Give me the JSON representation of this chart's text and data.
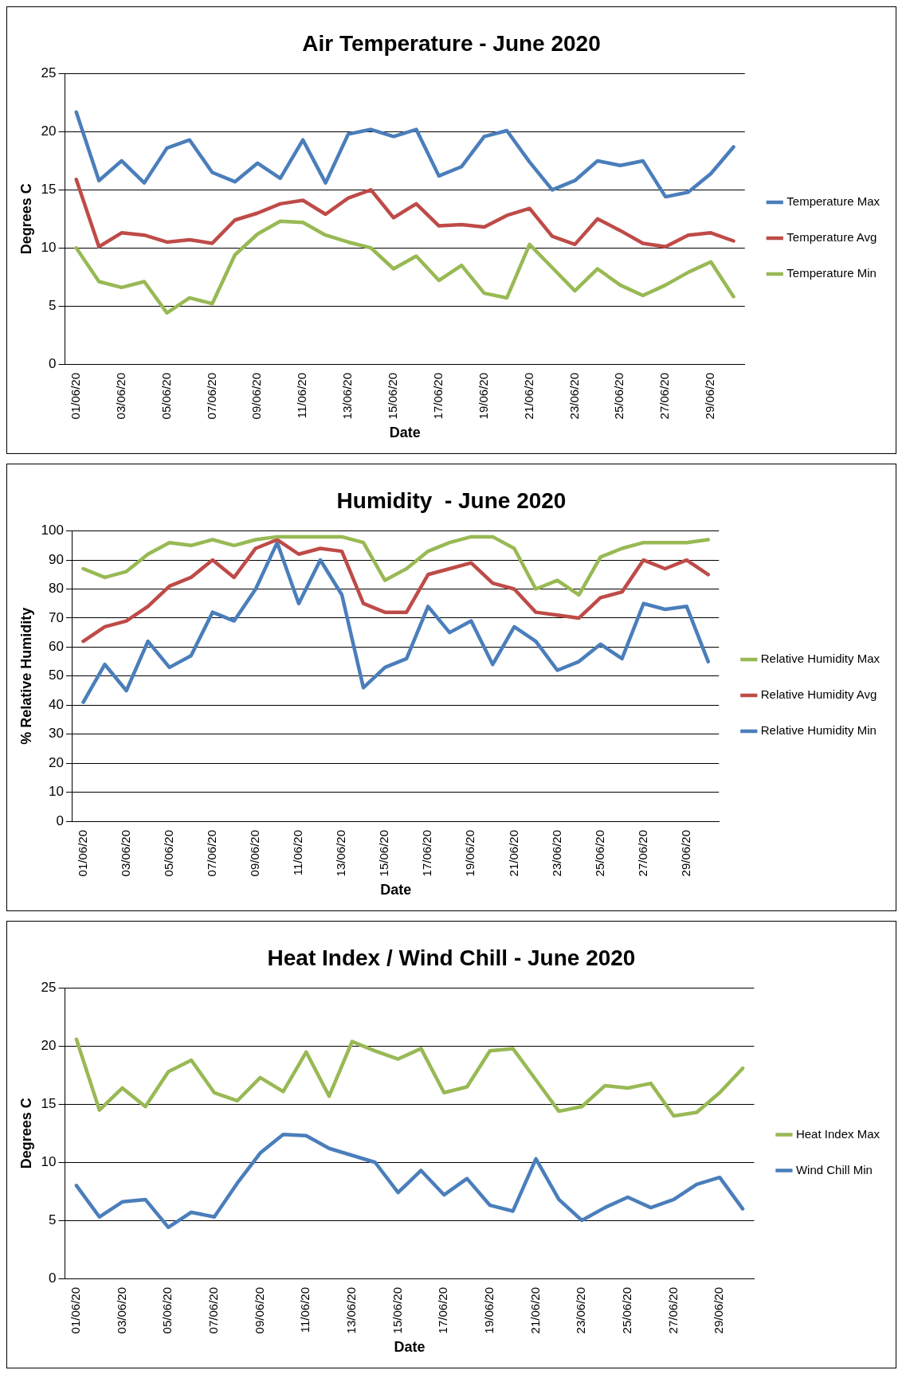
{
  "chart_data": [
    {
      "type": "line",
      "title": "Air Temperature - June 2020",
      "xlabel": "Date",
      "ylabel": "Degrees C",
      "categories": [
        "01/06/20",
        null,
        "03/06/20",
        null,
        "05/06/20",
        null,
        "07/06/20",
        null,
        "09/06/20",
        null,
        "11/06/20",
        null,
        "13/06/20",
        null,
        "15/06/20",
        null,
        "17/06/20",
        null,
        "19/06/20",
        null,
        "21/06/20",
        null,
        "23/06/20",
        null,
        "25/06/20",
        null,
        "27/06/20",
        null,
        "29/06/20",
        null
      ],
      "ylim": [
        0,
        25
      ],
      "yticks": [
        0,
        5,
        10,
        15,
        20,
        25
      ],
      "grid": "y",
      "legend": "right",
      "marker": "none",
      "line_style": "solid",
      "series": [
        {
          "name": "Temperature Max",
          "color": "#4a7ebb",
          "values": [
            21.7,
            15.8,
            17.5,
            15.6,
            18.6,
            19.3,
            16.5,
            15.7,
            17.3,
            16.0,
            19.3,
            15.6,
            19.8,
            20.2,
            19.6,
            20.2,
            16.2,
            17.0,
            19.6,
            20.1,
            17.4,
            15.0,
            15.8,
            17.5,
            17.1,
            17.5,
            14.4,
            14.8,
            16.4,
            18.7
          ]
        },
        {
          "name": "Temperature Avg",
          "color": "#be4b48",
          "values": [
            15.9,
            10.1,
            11.3,
            11.1,
            10.5,
            10.7,
            10.4,
            12.4,
            13.0,
            13.8,
            14.1,
            12.9,
            14.3,
            15.0,
            12.6,
            13.8,
            11.9,
            12.0,
            11.8,
            12.8,
            13.4,
            11.0,
            10.3,
            12.5,
            11.5,
            10.4,
            10.1,
            11.1,
            11.3,
            10.6
          ]
        },
        {
          "name": "Temperature Min",
          "color": "#98b954",
          "values": [
            10.0,
            7.1,
            6.6,
            7.1,
            4.4,
            5.7,
            5.2,
            9.4,
            11.2,
            12.3,
            12.2,
            11.1,
            10.5,
            10.0,
            8.2,
            9.3,
            7.2,
            8.5,
            6.1,
            5.7,
            10.3,
            8.3,
            6.3,
            8.2,
            6.8,
            5.9,
            6.8,
            7.9,
            8.8,
            5.8
          ]
        }
      ]
    },
    {
      "type": "line",
      "title": "Humidity  - June 2020",
      "xlabel": "Date",
      "ylabel": "% Relative Humidity",
      "categories": [
        "01/06/20",
        null,
        "03/06/20",
        null,
        "05/06/20",
        null,
        "07/06/20",
        null,
        "09/06/20",
        null,
        "11/06/20",
        null,
        "13/06/20",
        null,
        "15/06/20",
        null,
        "17/06/20",
        null,
        "19/06/20",
        null,
        "21/06/20",
        null,
        "23/06/20",
        null,
        "25/06/20",
        null,
        "27/06/20",
        null,
        "29/06/20",
        null
      ],
      "ylim": [
        0,
        100
      ],
      "yticks": [
        0,
        10,
        20,
        30,
        40,
        50,
        60,
        70,
        80,
        90,
        100
      ],
      "grid": "y",
      "legend": "right",
      "marker": "none",
      "line_style": "solid",
      "series": [
        {
          "name": "Relative Humidity Max",
          "color": "#98b954",
          "values": [
            87,
            84,
            86,
            92,
            96,
            95,
            97,
            95,
            97,
            98,
            98,
            98,
            98,
            96,
            83,
            87,
            93,
            96,
            98,
            98,
            94,
            80,
            83,
            78,
            91,
            94,
            96,
            96,
            96,
            97
          ]
        },
        {
          "name": "Relative Humidity Avg",
          "color": "#be4b48",
          "values": [
            62,
            67,
            69,
            74,
            81,
            84,
            90,
            84,
            94,
            97,
            92,
            94,
            93,
            75,
            72,
            72,
            85,
            87,
            89,
            82,
            80,
            72,
            71,
            70,
            77,
            79,
            90,
            87,
            90,
            85
          ]
        },
        {
          "name": "Relative Humidity Min",
          "color": "#4a7ebb",
          "values": [
            41,
            54,
            45,
            62,
            53,
            57,
            72,
            69,
            80,
            96,
            75,
            90,
            78,
            46,
            53,
            56,
            74,
            65,
            69,
            54,
            67,
            62,
            52,
            55,
            61,
            56,
            75,
            73,
            74,
            55
          ]
        }
      ]
    },
    {
      "type": "line",
      "title": "Heat Index / Wind Chill - June 2020",
      "xlabel": "Date",
      "ylabel": "Degrees C",
      "categories": [
        "01/06/20",
        null,
        "03/06/20",
        null,
        "05/06/20",
        null,
        "07/06/20",
        null,
        "09/06/20",
        null,
        "11/06/20",
        null,
        "13/06/20",
        null,
        "15/06/20",
        null,
        "17/06/20",
        null,
        "19/06/20",
        null,
        "21/06/20",
        null,
        "23/06/20",
        null,
        "25/06/20",
        null,
        "27/06/20",
        null,
        "29/06/20",
        null
      ],
      "ylim": [
        0,
        25
      ],
      "yticks": [
        0,
        5,
        10,
        15,
        20,
        25
      ],
      "grid": "y",
      "legend": "right",
      "marker": "none",
      "line_style": "solid",
      "series": [
        {
          "name": "Heat Index Max",
          "color": "#98b954",
          "values": [
            20.6,
            14.5,
            16.4,
            14.8,
            17.8,
            18.8,
            16.0,
            15.3,
            17.3,
            16.1,
            19.5,
            15.7,
            20.4,
            19.6,
            18.9,
            19.8,
            16.0,
            16.5,
            19.6,
            19.8,
            17.1,
            14.4,
            14.8,
            16.6,
            16.4,
            16.8,
            14.0,
            14.3,
            16.0,
            18.1
          ]
        },
        {
          "name": "Wind Chill Min",
          "color": "#4a7ebb",
          "values": [
            8.0,
            5.3,
            6.6,
            6.8,
            4.4,
            5.7,
            5.3,
            8.2,
            10.8,
            12.4,
            12.3,
            11.2,
            10.6,
            10.0,
            7.4,
            9.3,
            7.2,
            8.6,
            6.3,
            5.8,
            10.3,
            6.8,
            5.0,
            6.1,
            7.0,
            6.1,
            6.8,
            8.1,
            8.7,
            6.0
          ]
        }
      ]
    }
  ]
}
